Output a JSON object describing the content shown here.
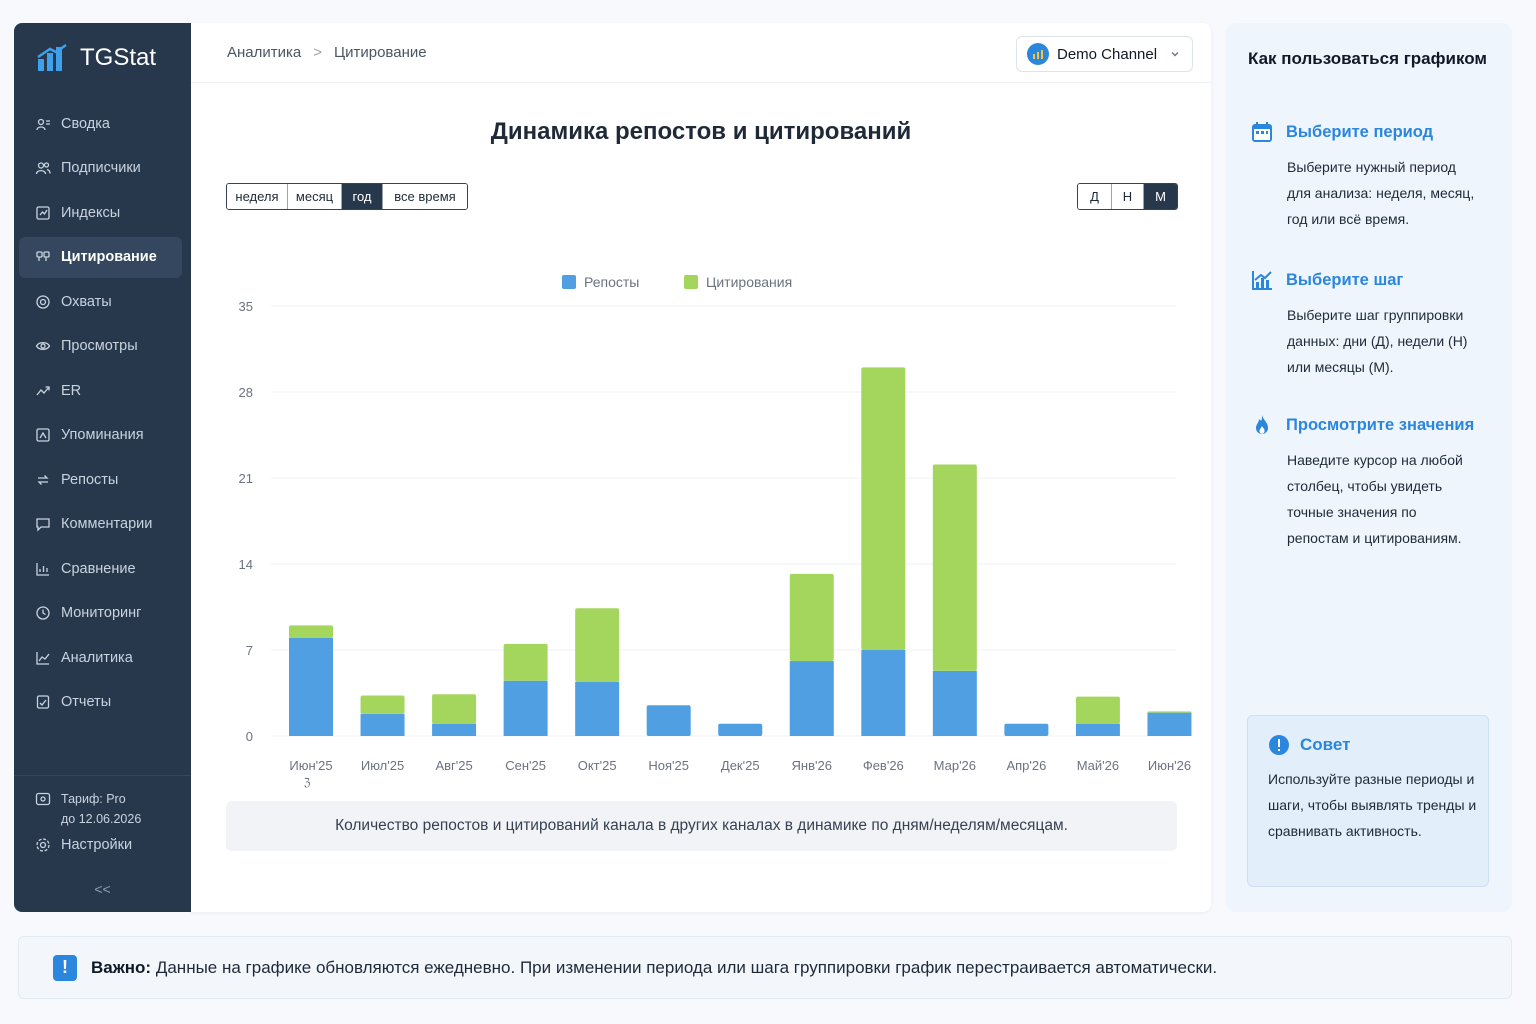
{
  "app": {
    "name": "TGStat"
  },
  "sidebar": {
    "items": [
      {
        "label": "Сводка",
        "icon": "summary-icon",
        "active": false
      },
      {
        "label": "Подписчики",
        "icon": "subscribers-icon",
        "active": false
      },
      {
        "label": "Индексы",
        "icon": "indexes-icon",
        "active": false
      },
      {
        "label": "Цитирование",
        "icon": "citation-icon",
        "active": true
      },
      {
        "label": "Охваты",
        "icon": "reach-icon",
        "active": false
      },
      {
        "label": "Просмотры",
        "icon": "views-icon",
        "active": false
      },
      {
        "label": "ER",
        "icon": "er-icon",
        "active": false
      },
      {
        "label": "Упоминания",
        "icon": "mentions-icon",
        "active": false
      },
      {
        "label": "Репосты",
        "icon": "reposts-icon",
        "active": false
      },
      {
        "label": "Комментарии",
        "icon": "comments-icon",
        "active": false
      },
      {
        "label": "Сравнение",
        "icon": "comparison-icon",
        "active": false
      },
      {
        "label": "Мониторинг",
        "icon": "monitoring-icon",
        "active": false
      },
      {
        "label": "Аналитика",
        "icon": "analytics-icon",
        "active": false
      },
      {
        "label": "Отчеты",
        "icon": "reports-icon",
        "active": false
      }
    ],
    "tariff_line1": "Тариф: Pro",
    "tariff_line2": "до 12.06.2026",
    "settings_label": "Настройки",
    "collapse_label": "<<"
  },
  "header": {
    "breadcrumb": [
      "Аналитика",
      "Цитирование"
    ],
    "breadcrumb_sep": ">",
    "channel_name": "Demo Channel"
  },
  "main": {
    "title": "Динамика репостов и цитирований",
    "period_options": [
      "неделя",
      "месяц",
      "год",
      "все время"
    ],
    "period_selected": "год",
    "step_options": [
      "Д",
      "Н",
      "М"
    ],
    "step_selected": "М",
    "caption": "Количество репостов и цитирований канала в других каналах в динамике по дням/неделям/месяцам."
  },
  "chart_data": {
    "type": "bar",
    "stacked": true,
    "categories": [
      "Июн'25",
      "Июл'25",
      "Авг'25",
      "Сен'25",
      "Окт'25",
      "Ноя'25",
      "Дек'25",
      "Янв'26",
      "Фев'26",
      "Мар'26",
      "Апр'26",
      "Май'26",
      "Июн'26"
    ],
    "series": [
      {
        "name": "Репосты",
        "color": "#4f9fe2",
        "values": [
          8,
          1.8,
          1,
          4.5,
          4.4,
          2.5,
          1,
          6.1,
          7,
          5.3,
          1,
          1,
          1.9
        ]
      },
      {
        "name": "Цитирования",
        "color": "#a4d65e",
        "values": [
          1,
          1.5,
          2.4,
          3,
          6,
          0,
          0,
          7.1,
          23,
          16.8,
          0,
          2.2,
          0.1
        ]
      }
    ],
    "ylim": [
      0,
      35
    ],
    "yticks": [
      0,
      7,
      14,
      21,
      28,
      35
    ],
    "legend": "top-center",
    "grid": true,
    "extra_tick_mark": "ℨ"
  },
  "help": {
    "title": "Как пользоваться графиком",
    "steps": [
      {
        "icon": "calendar-icon",
        "title": "Выберите период",
        "text": "Выберите нужный период для анализа: неделя, месяц, год или всё время."
      },
      {
        "icon": "chart-icon",
        "title": "Выберите шаг",
        "text": "Выберите шаг группировки данных: дни (Д), недели (Н) или месяцы (М)."
      },
      {
        "icon": "fire-icon",
        "title": "Просмотрите значения",
        "text": "Наведите курсор на любой столбец, чтобы увидеть точные значения по репостам и цитированиям."
      }
    ],
    "tip_title": "Совет",
    "tip_text": "Используйте разные периоды и шаги, чтобы выявлять тренды и сравнивать активность."
  },
  "notice": {
    "bold": "Важно:",
    "text": "Данные на графике обновляются ежедневно. При изменении периода или шага группировки график перестраивается автоматически."
  },
  "colors": {
    "sidebar": "#27384d",
    "accent": "#2b86de",
    "reposts": "#4f9fe2",
    "citations": "#a4d65e"
  }
}
